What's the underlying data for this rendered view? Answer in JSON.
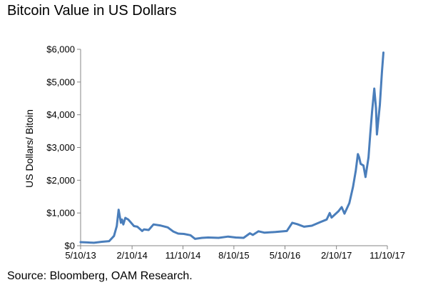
{
  "chart_data": {
    "type": "line",
    "title": "Bitcoin Value in US Dollars",
    "xlabel": "",
    "ylabel": "US Dollars/ Bitoin",
    "ylim": [
      0,
      6000
    ],
    "yticks": [
      "$0",
      "$1,000",
      "$2,000",
      "$3,000",
      "$4,000",
      "$5,000",
      "$6,000"
    ],
    "ytick_values": [
      0,
      1000,
      2000,
      3000,
      4000,
      5000,
      6000
    ],
    "xlim": [
      "2013-05-10",
      "2017-11-10"
    ],
    "xticks": [
      "5/10/13",
      "2/10/14",
      "11/10/14",
      "8/10/15",
      "5/10/16",
      "2/10/17",
      "11/10/17"
    ],
    "xtick_dates": [
      "2013-05-10",
      "2014-02-10",
      "2014-11-10",
      "2015-08-10",
      "2016-05-10",
      "2017-02-10",
      "2017-11-10"
    ],
    "grid": false,
    "color": "#4a7ebb",
    "series": [
      {
        "x": [
          "2013-05-10",
          "2013-06-15",
          "2013-07-20",
          "2013-09-01",
          "2013-10-10",
          "2013-11-05",
          "2013-11-20",
          "2013-11-30",
          "2013-12-06",
          "2013-12-12",
          "2013-12-18",
          "2013-12-25",
          "2014-01-05",
          "2014-01-20",
          "2014-02-05",
          "2014-02-20",
          "2014-03-10",
          "2014-04-05",
          "2014-04-15",
          "2014-05-10",
          "2014-06-05",
          "2014-07-10",
          "2014-08-20",
          "2014-09-20",
          "2014-10-15",
          "2014-11-15",
          "2014-12-20",
          "2015-01-14",
          "2015-02-20",
          "2015-03-25",
          "2015-05-20",
          "2015-07-10",
          "2015-08-20",
          "2015-10-01",
          "2015-11-04",
          "2015-11-20",
          "2015-12-20",
          "2016-01-20",
          "2016-03-20",
          "2016-05-20",
          "2016-06-18",
          "2016-07-15",
          "2016-08-20",
          "2016-10-01",
          "2016-11-15",
          "2016-12-20",
          "2017-01-05",
          "2017-01-15",
          "2017-02-20",
          "2017-03-10",
          "2017-03-25",
          "2017-04-20",
          "2017-05-10",
          "2017-05-25",
          "2017-06-05",
          "2017-06-12",
          "2017-06-20",
          "2017-07-05",
          "2017-07-16",
          "2017-08-01",
          "2017-08-10",
          "2017-08-20",
          "2017-09-01",
          "2017-09-10",
          "2017-09-15",
          "2017-09-22",
          "2017-10-01",
          "2017-10-12",
          "2017-10-20"
        ],
        "y": [
          110,
          100,
          90,
          120,
          140,
          300,
          600,
          1100,
          900,
          700,
          800,
          650,
          850,
          800,
          700,
          600,
          580,
          450,
          500,
          480,
          650,
          620,
          560,
          430,
          370,
          360,
          320,
          210,
          240,
          250,
          240,
          280,
          250,
          240,
          380,
          330,
          440,
          400,
          420,
          450,
          700,
          660,
          580,
          610,
          720,
          800,
          1000,
          860,
          1050,
          1180,
          980,
          1300,
          1800,
          2300,
          2800,
          2700,
          2500,
          2450,
          2100,
          2700,
          3400,
          4100,
          4800,
          4200,
          3400,
          3800,
          4300,
          5300,
          5900
        ]
      }
    ]
  },
  "source": "Source:  Bloomberg, OAM Research."
}
